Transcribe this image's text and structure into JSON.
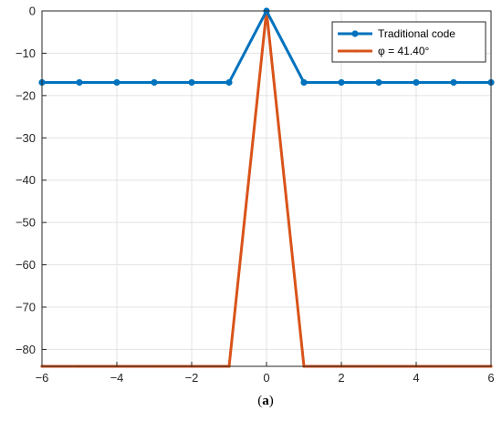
{
  "chart_data": {
    "type": "line",
    "title": "",
    "xlabel": "",
    "ylabel": "",
    "xlim": [
      -6,
      6
    ],
    "ylim": [
      -84,
      0
    ],
    "xticks": [
      -6,
      -4,
      -2,
      0,
      2,
      4,
      6
    ],
    "yticks": [
      0,
      -10,
      -20,
      -30,
      -40,
      -50,
      -60,
      -70,
      -80
    ],
    "xtick_labels": [
      "−6",
      "−4",
      "−2",
      "0",
      "2",
      "4",
      "6"
    ],
    "ytick_labels": [
      "0",
      "−10",
      "−20",
      "−30",
      "−40",
      "−50",
      "−60",
      "−70",
      "−80"
    ],
    "grid": true,
    "legend_position": "top-right",
    "series": [
      {
        "name": "Traditional code",
        "color": "#0072BD",
        "marker": "circle",
        "x": [
          -6,
          -5,
          -4,
          -3,
          -2,
          -1,
          0,
          1,
          2,
          3,
          4,
          5,
          6
        ],
        "y": [
          -16.9,
          -16.9,
          -16.9,
          -16.9,
          -16.9,
          -16.9,
          0,
          -16.9,
          -16.9,
          -16.9,
          -16.9,
          -16.9,
          -16.9
        ]
      },
      {
        "name": "φ = 41.40°",
        "color": "#D95319",
        "marker": "point",
        "x": [
          -6,
          -5,
          -4,
          -3,
          -2,
          -1,
          0,
          1,
          2,
          3,
          4,
          5,
          6
        ],
        "y": [
          -84,
          -84,
          -84,
          -84,
          -84,
          -84,
          0,
          -84,
          -84,
          -84,
          -84,
          -84,
          -84
        ]
      }
    ]
  },
  "caption": {
    "open": "(",
    "label": "a",
    "close": ")"
  }
}
